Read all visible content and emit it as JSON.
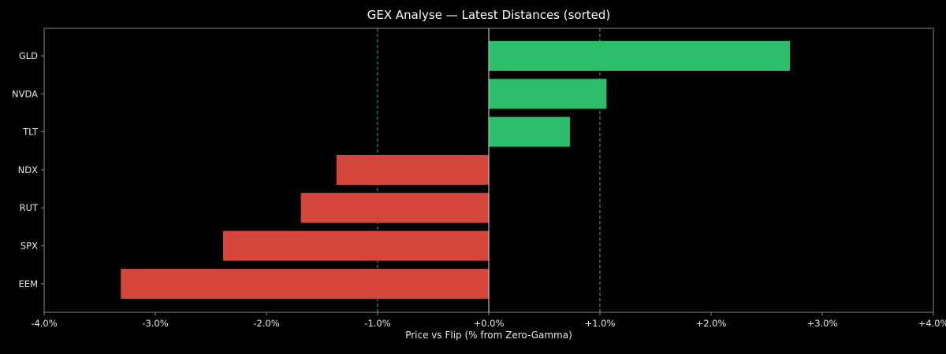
{
  "chart_data": {
    "type": "bar",
    "orientation": "horizontal",
    "title": "GEX Analyse — Latest Distances (sorted)",
    "xlabel": "Price vs Flip (% from Zero-Gamma)",
    "ylabel": "",
    "xlim": [
      -4.0,
      4.0
    ],
    "xticks": [
      -4,
      -3,
      -2,
      -1,
      0,
      1,
      2,
      3,
      4
    ],
    "xtick_labels": [
      "-4.0%",
      "-3.0%",
      "-2.0%",
      "-1.0%",
      "+0.0%",
      "+1.0%",
      "+2.0%",
      "+3.0%",
      "+4.0%"
    ],
    "categories": [
      "GLD",
      "NVDA",
      "TLT",
      "NDX",
      "RUT",
      "SPX",
      "EEM"
    ],
    "values": [
      2.71,
      1.06,
      0.73,
      -1.37,
      -1.69,
      -2.39,
      -3.31
    ],
    "reference_lines": [
      -1.0,
      1.0
    ],
    "grid": false,
    "legend": "none",
    "colors": {
      "positive": "#2bbd6b",
      "negative": "#d4473a",
      "reference_line": "#2bbd6b",
      "zero_line": "#bfbfbf",
      "axes": "#888888",
      "text": "#e6e6e6",
      "background": "#000000"
    }
  }
}
